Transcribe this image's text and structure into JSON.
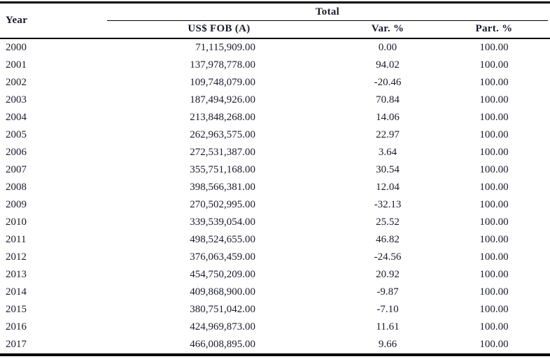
{
  "colors": {
    "text": "#1b1b2f",
    "rule": "#000000"
  },
  "table": {
    "corner_header": "Year",
    "group_header": "Total",
    "columns": [
      "US$ FOB (A)",
      "Var. %",
      "Part. %"
    ],
    "rows": [
      {
        "year": "2000",
        "us_fob": "71,115,909.00",
        "var_pct": "0.00",
        "part_pct": "100.00"
      },
      {
        "year": "2001",
        "us_fob": "137,978,778.00",
        "var_pct": "94.02",
        "part_pct": "100.00"
      },
      {
        "year": "2002",
        "us_fob": "109,748,079.00",
        "var_pct": "-20.46",
        "part_pct": "100.00"
      },
      {
        "year": "2003",
        "us_fob": "187,494,926.00",
        "var_pct": "70.84",
        "part_pct": "100.00"
      },
      {
        "year": "2004",
        "us_fob": "213,848,268.00",
        "var_pct": "14.06",
        "part_pct": "100.00"
      },
      {
        "year": "2005",
        "us_fob": "262,963,575.00",
        "var_pct": "22.97",
        "part_pct": "100.00"
      },
      {
        "year": "2006",
        "us_fob": "272,531,387.00",
        "var_pct": "3.64",
        "part_pct": "100.00"
      },
      {
        "year": "2007",
        "us_fob": "355,751,168.00",
        "var_pct": "30.54",
        "part_pct": "100.00"
      },
      {
        "year": "2008",
        "us_fob": "398,566,381.00",
        "var_pct": "12.04",
        "part_pct": "100.00"
      },
      {
        "year": "2009",
        "us_fob": "270,502,995.00",
        "var_pct": "-32.13",
        "part_pct": "100.00"
      },
      {
        "year": "2010",
        "us_fob": "339,539,054.00",
        "var_pct": "25.52",
        "part_pct": "100.00"
      },
      {
        "year": "2011",
        "us_fob": "498,524,655.00",
        "var_pct": "46.82",
        "part_pct": "100.00"
      },
      {
        "year": "2012",
        "us_fob": "376,063,459.00",
        "var_pct": "-24.56",
        "part_pct": "100.00"
      },
      {
        "year": "2013",
        "us_fob": "454,750,209.00",
        "var_pct": "20.92",
        "part_pct": "100.00"
      },
      {
        "year": "2014",
        "us_fob": "409,868,900.00",
        "var_pct": "-9.87",
        "part_pct": "100.00"
      },
      {
        "year": "2015",
        "us_fob": "380,751,042.00",
        "var_pct": "-7.10",
        "part_pct": "100.00"
      },
      {
        "year": "2016",
        "us_fob": "424,969,873.00",
        "var_pct": "11.61",
        "part_pct": "100.00"
      },
      {
        "year": "2017",
        "us_fob": "466,008,895.00",
        "var_pct": "9.66",
        "part_pct": "100.00"
      }
    ]
  }
}
